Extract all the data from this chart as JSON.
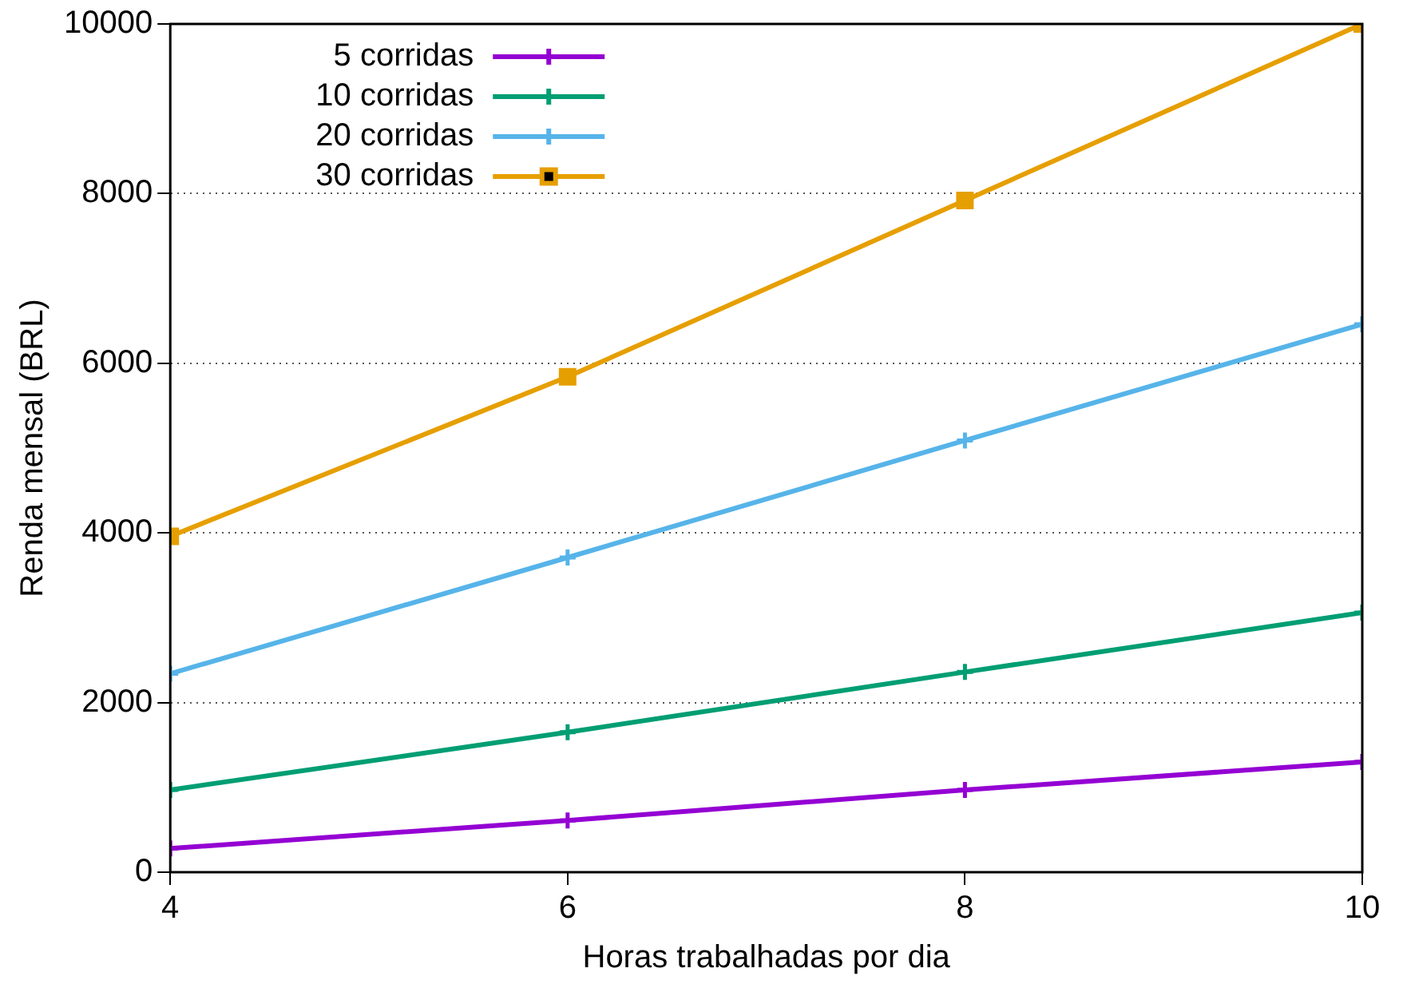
{
  "chart_data": {
    "type": "line",
    "xlabel": "Horas trabalhadas por dia",
    "ylabel": "Renda mensal (BRL)",
    "x": [
      4,
      6,
      8,
      10
    ],
    "xlim": [
      4,
      10
    ],
    "xticks": [
      4,
      6,
      8,
      10
    ],
    "ylim": [
      0,
      10000
    ],
    "yticks": [
      0,
      2000,
      4000,
      6000,
      8000,
      10000
    ],
    "grid": "y",
    "legend": "top left",
    "series": [
      {
        "name": "5 corridas",
        "color": "#9400d3",
        "marker": "cross",
        "values": [
          280,
          610,
          970,
          1300
        ]
      },
      {
        "name": "10 corridas",
        "color": "#009e73",
        "marker": "cross",
        "values": [
          970,
          1650,
          2360,
          3060
        ]
      },
      {
        "name": "20 corridas",
        "color": "#56b4e9",
        "marker": "cross",
        "values": [
          2340,
          3710,
          5090,
          6460
        ]
      },
      {
        "name": "30 corridas",
        "color": "#e69f00",
        "marker": "square",
        "values": [
          3960,
          5840,
          7920,
          10000
        ]
      }
    ]
  }
}
